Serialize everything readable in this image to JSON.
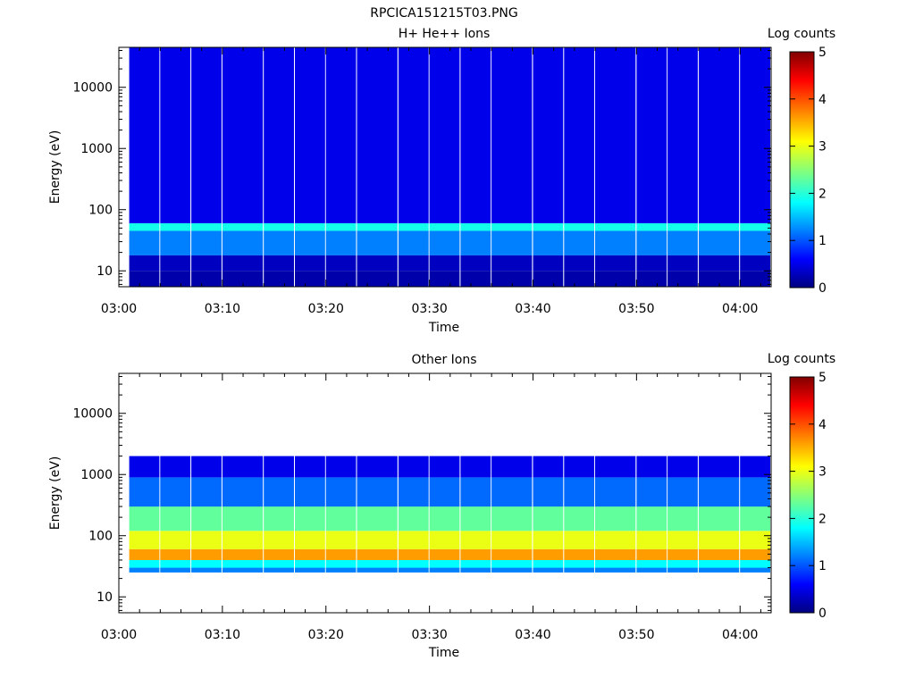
{
  "figure": {
    "title": "RPCICA151215T03.PNG"
  },
  "colorbar": {
    "label": "Log counts",
    "ticks": [
      0,
      1,
      2,
      3,
      4,
      5
    ],
    "tick_labels": [
      "0",
      "1",
      "2",
      "3",
      "4",
      "5"
    ],
    "colormap": [
      "#000080",
      "#0000ff",
      "#00ffff",
      "#ffff00",
      "#ff0000",
      "#800000"
    ]
  },
  "chart_data": [
    {
      "type": "heatmap",
      "title": "H+ He++ Ions",
      "xlabel": "Time",
      "ylabel": "Energy (eV)",
      "y_scale": "log",
      "ylim": [
        5.5,
        45000
      ],
      "xlim": [
        "03:00",
        "04:03"
      ],
      "x_ticks": [
        "03:00",
        "03:10",
        "03:20",
        "03:30",
        "03:40",
        "03:50",
        "04:00"
      ],
      "y_ticks": [
        10,
        100,
        1000,
        10000
      ],
      "y_tick_labels": [
        "10",
        "100",
        "1000",
        "10000"
      ],
      "zlim": [
        0,
        5
      ],
      "time_bins": [
        "03:01",
        "03:04",
        "03:07",
        "03:10",
        "03:14",
        "03:17",
        "03:20",
        "03:23",
        "03:27",
        "03:30",
        "03:33",
        "03:36",
        "03:40",
        "03:43",
        "03:46",
        "03:50",
        "03:53",
        "03:56",
        "04:00",
        "04:03"
      ],
      "pattern": [
        {
          "e_min": 5.5,
          "e_max": 10,
          "log_counts": 0.2
        },
        {
          "e_min": 10,
          "e_max": 18,
          "log_counts": 0.3
        },
        {
          "e_min": 18,
          "e_max": 45,
          "log_counts": 1.2
        },
        {
          "e_min": 45,
          "e_max": 60,
          "log_counts": 1.9
        },
        {
          "e_min": 60,
          "e_max": 45000,
          "log_counts": 0.5
        }
      ]
    },
    {
      "type": "heatmap",
      "title": "Other Ions",
      "xlabel": "Time",
      "ylabel": "Energy (eV)",
      "y_scale": "log",
      "ylim": [
        5.5,
        45000
      ],
      "xlim": [
        "03:00",
        "04:03"
      ],
      "x_ticks": [
        "03:00",
        "03:10",
        "03:20",
        "03:30",
        "03:40",
        "03:50",
        "04:00"
      ],
      "y_ticks": [
        10,
        100,
        1000,
        10000
      ],
      "y_tick_labels": [
        "10",
        "100",
        "1000",
        "10000"
      ],
      "zlim": [
        0,
        5
      ],
      "time_bins": [
        "03:01",
        "03:04",
        "03:07",
        "03:10",
        "03:14",
        "03:17",
        "03:20",
        "03:23",
        "03:27",
        "03:30",
        "03:33",
        "03:36",
        "03:40",
        "03:43",
        "03:46",
        "03:50",
        "03:53",
        "03:56",
        "04:00",
        "04:03"
      ],
      "pattern": [
        {
          "e_min": 25,
          "e_max": 30,
          "log_counts": 1.2
        },
        {
          "e_min": 30,
          "e_max": 40,
          "log_counts": 1.8
        },
        {
          "e_min": 40,
          "e_max": 60,
          "log_counts": 3.6
        },
        {
          "e_min": 60,
          "e_max": 120,
          "log_counts": 3.0
        },
        {
          "e_min": 120,
          "e_max": 300,
          "log_counts": 2.3
        },
        {
          "e_min": 300,
          "e_max": 900,
          "log_counts": 1.1
        },
        {
          "e_min": 900,
          "e_max": 2000,
          "log_counts": 0.5
        }
      ]
    }
  ]
}
